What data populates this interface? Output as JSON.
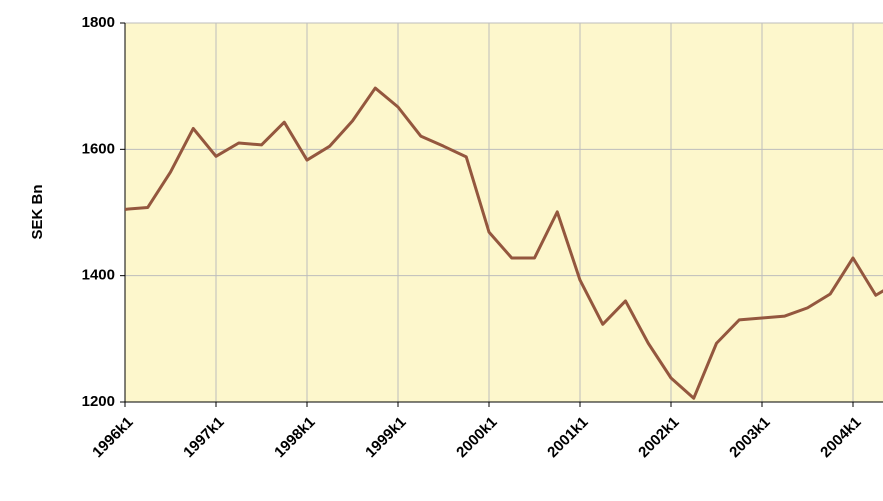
{
  "chart_data": {
    "type": "line",
    "y_label": "SEK Bn",
    "categories": [
      "1996k1",
      null,
      null,
      null,
      "1997k1",
      null,
      null,
      null,
      "1998k1",
      null,
      null,
      null,
      "1999k1",
      null,
      null,
      null,
      "2000k1",
      null,
      null,
      null,
      "2001k1",
      null,
      null,
      null,
      "2002k1",
      null,
      null,
      null,
      "2003k1",
      null,
      null,
      null,
      "2004k1",
      null,
      null
    ],
    "series": [
      {
        "name": "SEK Bn",
        "color": "#94573e",
        "values": [
          1505,
          1508,
          1564,
          1633,
          1589,
          1610,
          1607,
          1643,
          1583,
          1605,
          1645,
          1697,
          1667,
          1621,
          1605,
          1588,
          1469,
          1428,
          1428,
          1501,
          1393,
          1323,
          1360,
          1293,
          1238,
          1206,
          1293,
          1330,
          1333,
          1336,
          1349,
          1371,
          1428,
          1369,
          1390
        ]
      }
    ],
    "ylim": [
      1200,
      1800
    ],
    "yticks": [
      1200,
      1400,
      1600,
      1800
    ],
    "grid": true,
    "background": "#fdf7cc"
  }
}
